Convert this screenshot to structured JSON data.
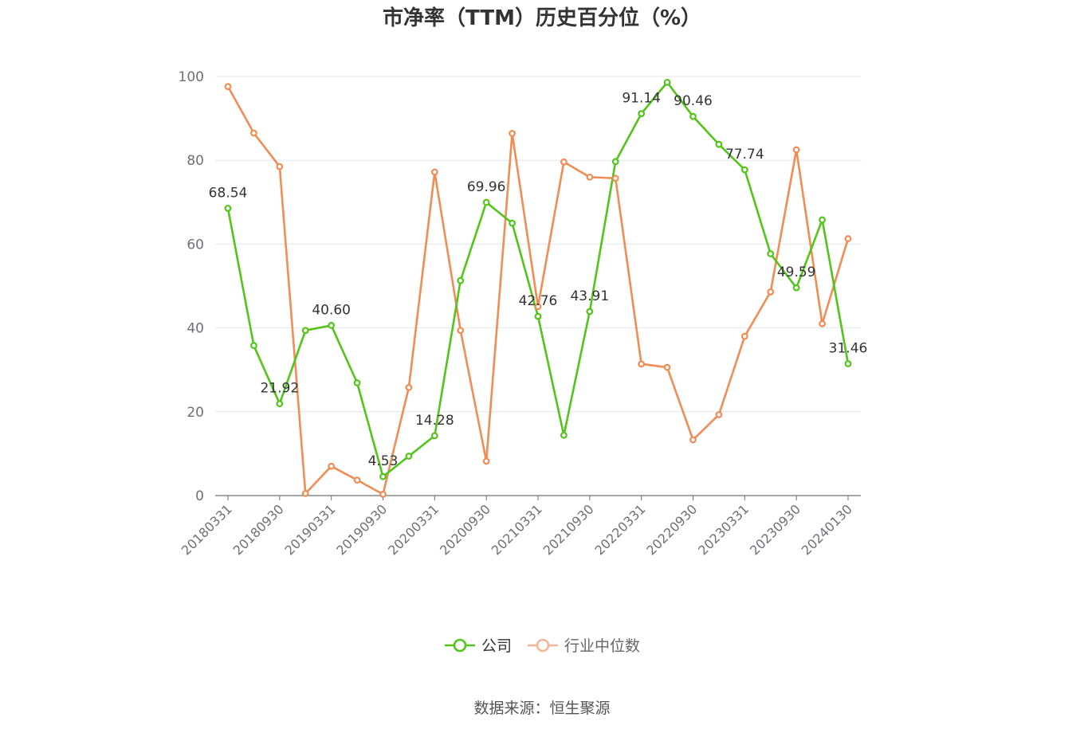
{
  "title": "市净率（TTM）历史百分位（%）",
  "source": "数据来源：恒生聚源",
  "colors": {
    "company": "#52c41a",
    "industry": "#f08c54",
    "axis": "#6e7079",
    "grid": "#e0e6f1",
    "label": "#333333"
  },
  "chart_data": {
    "type": "line",
    "x": [
      "20180331",
      "20180630",
      "20180930",
      "20181231",
      "20190331",
      "20190630",
      "20190930",
      "20191231",
      "20200331",
      "20200630",
      "20200930",
      "20201231",
      "20210331",
      "20210630",
      "20210930",
      "20211231",
      "20220331",
      "20220630",
      "20220930",
      "20221231",
      "20230331",
      "20230630",
      "20230930",
      "20231231",
      "20240130"
    ],
    "x_tick_labels": [
      "20180331",
      "20180930",
      "20190331",
      "20190930",
      "20200331",
      "20200930",
      "20210331",
      "20210930",
      "20220331",
      "20220930",
      "20230331",
      "20230930",
      "20240130"
    ],
    "y_ticks": [
      0,
      20,
      40,
      60,
      80,
      100
    ],
    "ylim": [
      0,
      100
    ],
    "grid": true,
    "legend_position": "bottom-center",
    "series": [
      {
        "name": "公司",
        "values": [
          68.54,
          35.8,
          21.92,
          39.4,
          40.6,
          26.9,
          4.53,
          9.4,
          14.28,
          51.3,
          69.96,
          65.0,
          42.76,
          14.4,
          43.91,
          79.7,
          91.14,
          98.6,
          90.46,
          83.8,
          77.74,
          57.7,
          49.59,
          65.8,
          31.46
        ]
      },
      {
        "name": "行业中位数",
        "values": [
          97.6,
          86.5,
          78.5,
          0.5,
          7.0,
          3.7,
          0.3,
          25.8,
          77.2,
          39.4,
          8.2,
          86.4,
          45.1,
          79.6,
          76.0,
          75.7,
          31.4,
          30.6,
          13.3,
          19.3,
          38.0,
          48.6,
          82.5,
          41.0,
          61.3
        ]
      }
    ],
    "data_labels": [
      {
        "index": 0,
        "text": "68.54"
      },
      {
        "index": 2,
        "text": "21.92"
      },
      {
        "index": 4,
        "text": "40.60"
      },
      {
        "index": 6,
        "text": "4.53"
      },
      {
        "index": 8,
        "text": "14.28"
      },
      {
        "index": 10,
        "text": "69.96"
      },
      {
        "index": 12,
        "text": "42.76"
      },
      {
        "index": 14,
        "text": "43.91"
      },
      {
        "index": 16,
        "text": "91.14"
      },
      {
        "index": 18,
        "text": "90.46"
      },
      {
        "index": 20,
        "text": "77.74"
      },
      {
        "index": 22,
        "text": "49.59"
      },
      {
        "index": 24,
        "text": "31.46"
      }
    ]
  }
}
